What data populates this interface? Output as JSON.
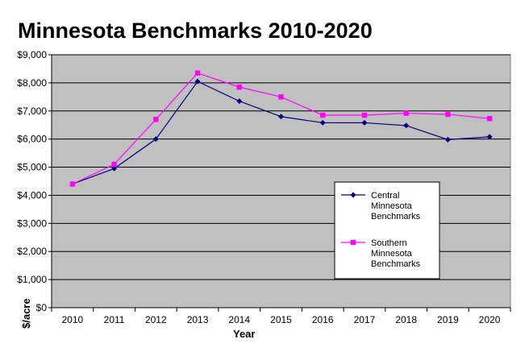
{
  "chart_data": {
    "type": "line",
    "title": "Minnesota Benchmarks 2010-2020",
    "xlabel": "Year",
    "ylabel": "$/acre",
    "categories": [
      "2010",
      "2011",
      "2012",
      "2013",
      "2014",
      "2015",
      "2016",
      "2017",
      "2018",
      "2019",
      "2020"
    ],
    "ylim": [
      0,
      9000
    ],
    "y_ticks": [
      "$0",
      "$1,000",
      "$2,000",
      "$3,000",
      "$4,000",
      "$5,000",
      "$6,000",
      "$7,000",
      "$8,000",
      "$9,000"
    ],
    "y_tick_values": [
      0,
      1000,
      2000,
      3000,
      4000,
      5000,
      6000,
      7000,
      8000,
      9000
    ],
    "grid": "horizontal",
    "legend_position": "bottom-right",
    "plot_background": "#c0c0c0",
    "series": [
      {
        "name_lines": [
          "Central",
          "Minnesota",
          "Benchmarks"
        ],
        "color": "#000080",
        "marker": "diamond",
        "values": [
          4400,
          4950,
          6000,
          8050,
          7350,
          6800,
          6580,
          6580,
          6480,
          5980,
          6080
        ]
      },
      {
        "name_lines": [
          "Southern",
          "Minnesota",
          "Benchmarks"
        ],
        "color": "#ff00ff",
        "marker": "square",
        "values": [
          4400,
          5100,
          6700,
          8350,
          7850,
          7500,
          6850,
          6850,
          6920,
          6880,
          6730
        ]
      }
    ]
  }
}
